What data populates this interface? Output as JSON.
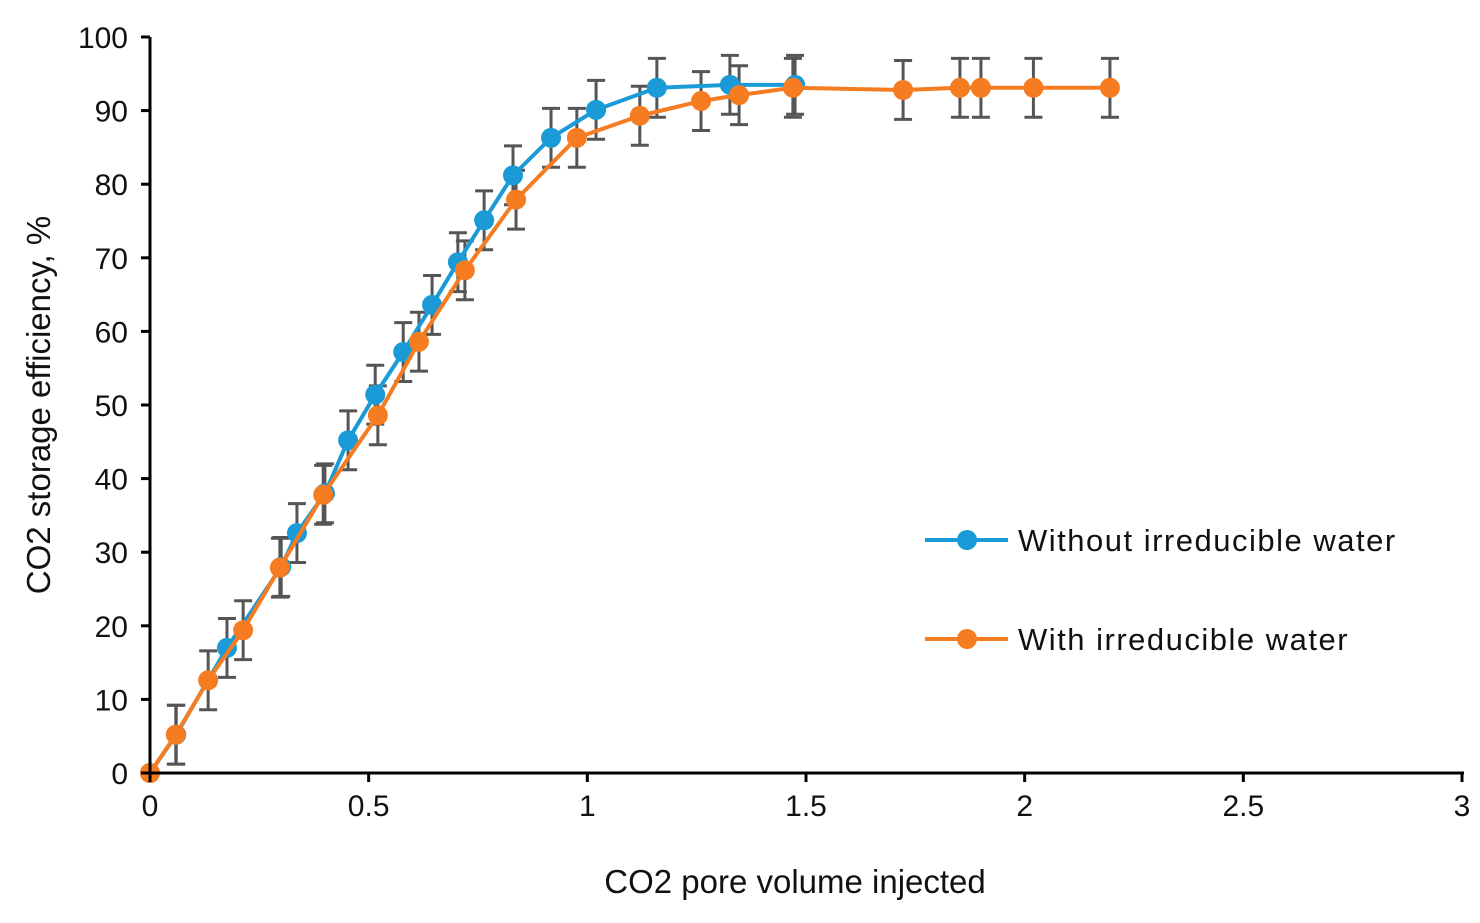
{
  "chart_data": {
    "type": "line",
    "title": "",
    "xlabel": "CO2 pore volume injected",
    "ylabel": "CO2 storage efficiency, %",
    "xlim": [
      0,
      3
    ],
    "ylim": [
      0,
      100
    ],
    "xticks": [
      "0",
      "0.5",
      "1",
      "1.5",
      "2",
      "2.5",
      "3"
    ],
    "yticks": [
      "0",
      "10",
      "20",
      "30",
      "40",
      "50",
      "60",
      "70",
      "80",
      "90",
      "100"
    ],
    "grid": false,
    "legend_position": "right",
    "error_bar": 4,
    "series": [
      {
        "name": "Without irreducible water",
        "color": "#1a9ad6",
        "x": [
          0,
          0.06,
          0.176,
          0.3,
          0.336,
          0.4,
          0.453,
          0.515,
          0.579,
          0.645,
          0.704,
          0.764,
          0.83,
          0.917,
          1.02,
          1.159,
          1.326,
          1.475
        ],
        "y": [
          0,
          5.2,
          17.0,
          28.0,
          32.6,
          38.0,
          45.2,
          51.4,
          57.2,
          63.6,
          69.4,
          75.1,
          81.2,
          86.3,
          90.1,
          93.1,
          93.5,
          93.5
        ]
      },
      {
        "name": "With irreducible water",
        "color": "#f57c20",
        "x": [
          0,
          0.059,
          0.133,
          0.213,
          0.297,
          0.396,
          0.521,
          0.615,
          0.72,
          0.837,
          0.976,
          1.12,
          1.26,
          1.347,
          1.47,
          1.722,
          1.852,
          1.9,
          2.02,
          2.195
        ],
        "y": [
          0,
          5.2,
          12.6,
          19.4,
          27.9,
          37.8,
          48.6,
          58.6,
          68.3,
          77.9,
          86.3,
          89.3,
          91.3,
          92.1,
          93.1,
          92.8,
          93.1,
          93.1,
          93.1,
          93.1
        ]
      }
    ]
  }
}
